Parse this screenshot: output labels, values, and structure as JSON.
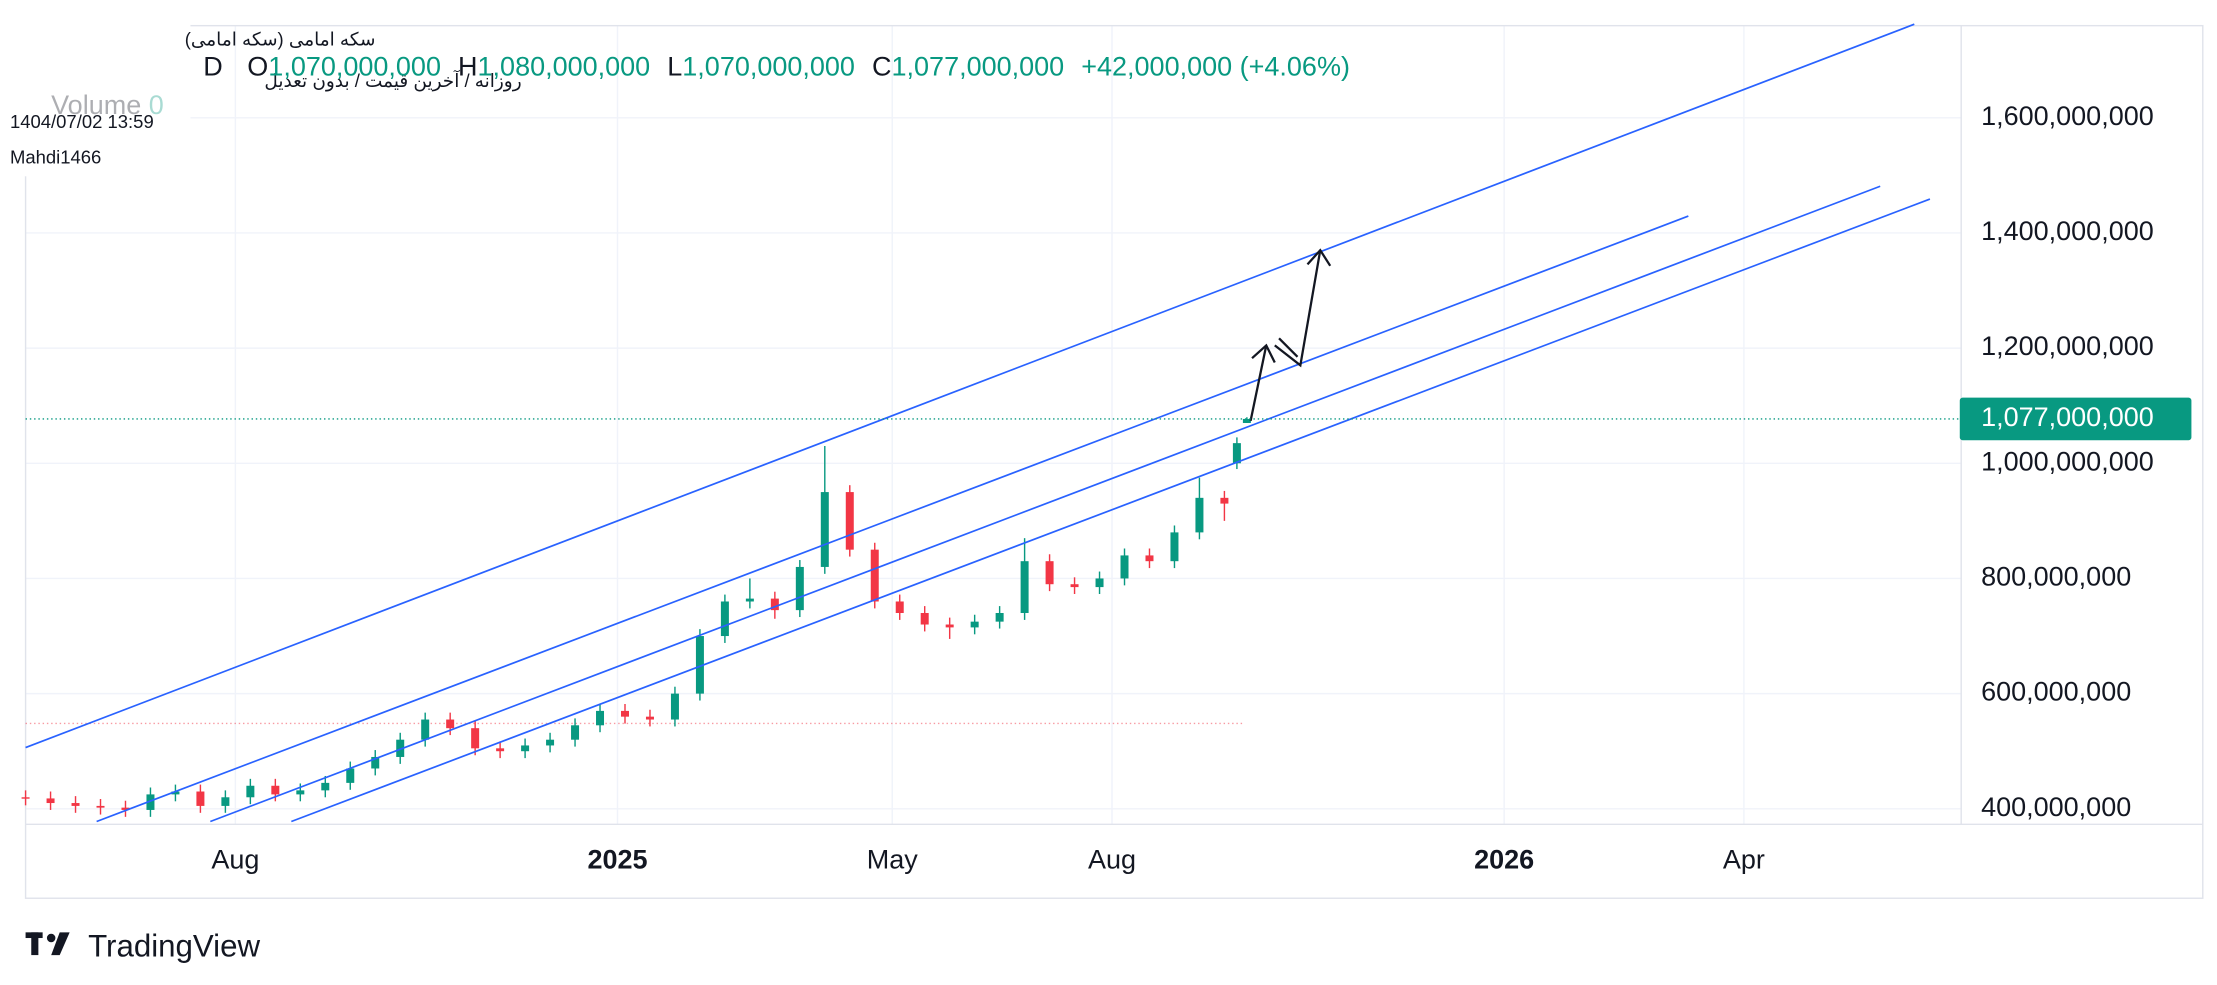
{
  "chart_data": {
    "type": "candlestick",
    "symbol_title": "سکه امامی (سکه امامی)",
    "subtitle": "روزانه / آخرین قیمت / بدون تعدیل",
    "timestamp": "1404/07/02 13:59",
    "author": "Mahdi1466",
    "ohlc_legend": {
      "interval": "D",
      "items": [
        {
          "key": "O",
          "value": "1,070,000,000"
        },
        {
          "key": "H",
          "value": "1,080,000,000"
        },
        {
          "key": "L",
          "value": "1,070,000,000"
        },
        {
          "key": "C",
          "value": "1,077,000,000"
        }
      ],
      "change": "+42,000,000 (+4.06%)"
    },
    "volume_label": "Volume",
    "volume_value": "0",
    "brand": "TradingView",
    "up_color": "#089981",
    "down_color": "#f23645",
    "grid": true,
    "price_tag": {
      "value": 1077000000,
      "label": "1,077,000,000"
    },
    "x": [
      0,
      10,
      20,
      30,
      40,
      50,
      60,
      70,
      80,
      90,
      100,
      110,
      120,
      130,
      140,
      150,
      160,
      170,
      180,
      190,
      200,
      210,
      220,
      230,
      240,
      250,
      260,
      270,
      280,
      290,
      300,
      310,
      320,
      330,
      340,
      350,
      360,
      370,
      380,
      390,
      400,
      410,
      420,
      430,
      440,
      450,
      460,
      470,
      480,
      485,
      489
    ],
    "open": [
      420000000,
      418000000,
      410000000,
      405000000,
      402000000,
      398000000,
      425000000,
      430000000,
      405000000,
      420000000,
      440000000,
      425000000,
      432000000,
      445000000,
      470000000,
      490000000,
      520000000,
      555000000,
      540000000,
      505000000,
      500000000,
      510000000,
      520000000,
      545000000,
      570000000,
      560000000,
      555000000,
      600000000,
      700000000,
      760000000,
      765000000,
      745000000,
      820000000,
      950000000,
      850000000,
      760000000,
      740000000,
      720000000,
      715000000,
      725000000,
      740000000,
      830000000,
      790000000,
      785000000,
      800000000,
      840000000,
      830000000,
      880000000,
      940000000,
      1000000000,
      1070000000
    ],
    "high": [
      432000000,
      430000000,
      422000000,
      417000000,
      414000000,
      437000000,
      442000000,
      442000000,
      432000000,
      452000000,
      452000000,
      444000000,
      457000000,
      482000000,
      502000000,
      532000000,
      567000000,
      567000000,
      552000000,
      517000000,
      522000000,
      532000000,
      557000000,
      582000000,
      582000000,
      572000000,
      612000000,
      712000000,
      772000000,
      800000000,
      777000000,
      832000000,
      1030000000,
      962000000,
      862000000,
      772000000,
      752000000,
      732000000,
      737000000,
      752000000,
      870000000,
      842000000,
      802000000,
      812000000,
      852000000,
      852000000,
      892000000,
      975000000,
      952000000,
      1045000000,
      1080000000
    ],
    "low": [
      406000000,
      398000000,
      393000000,
      390000000,
      386000000,
      386000000,
      413000000,
      393000000,
      393000000,
      408000000,
      413000000,
      413000000,
      420000000,
      433000000,
      458000000,
      478000000,
      508000000,
      528000000,
      493000000,
      488000000,
      488000000,
      498000000,
      508000000,
      533000000,
      548000000,
      543000000,
      543000000,
      588000000,
      688000000,
      748000000,
      730000000,
      733000000,
      808000000,
      838000000,
      748000000,
      728000000,
      708000000,
      695000000,
      703000000,
      713000000,
      728000000,
      778000000,
      773000000,
      773000000,
      788000000,
      818000000,
      818000000,
      868000000,
      900000000,
      990000000,
      1070000000
    ],
    "close": [
      418000000,
      410000000,
      405000000,
      402000000,
      398000000,
      425000000,
      430000000,
      405000000,
      420000000,
      440000000,
      425000000,
      432000000,
      445000000,
      470000000,
      490000000,
      520000000,
      555000000,
      540000000,
      505000000,
      500000000,
      510000000,
      520000000,
      545000000,
      570000000,
      560000000,
      555000000,
      600000000,
      700000000,
      760000000,
      765000000,
      745000000,
      820000000,
      950000000,
      850000000,
      760000000,
      740000000,
      720000000,
      715000000,
      725000000,
      740000000,
      830000000,
      790000000,
      785000000,
      800000000,
      840000000,
      830000000,
      880000000,
      940000000,
      930000000,
      1035000000,
      1077000000
    ],
    "xlim": [
      0,
      775
    ],
    "xticks": [
      {
        "value": 84,
        "label": "Aug"
      },
      {
        "value": 237,
        "label": "2025"
      },
      {
        "value": 347,
        "label": "May"
      },
      {
        "value": 435,
        "label": "Aug"
      },
      {
        "value": 592,
        "label": "2026"
      },
      {
        "value": 688,
        "label": "Apr"
      }
    ],
    "ylim": [
      373000000,
      1760000000
    ],
    "yticks": [
      {
        "value": 400000000,
        "label": "400,000,000"
      },
      {
        "value": 600000000,
        "label": "600,000,000"
      },
      {
        "value": 800000000,
        "label": "800,000,000"
      },
      {
        "value": 1000000000,
        "label": "1,000,000,000"
      },
      {
        "value": 1200000000,
        "label": "1,200,000,000"
      },
      {
        "value": 1400000000,
        "label": "1,400,000,000"
      },
      {
        "value": 1600000000,
        "label": "1,600,000,000"
      }
    ]
  }
}
